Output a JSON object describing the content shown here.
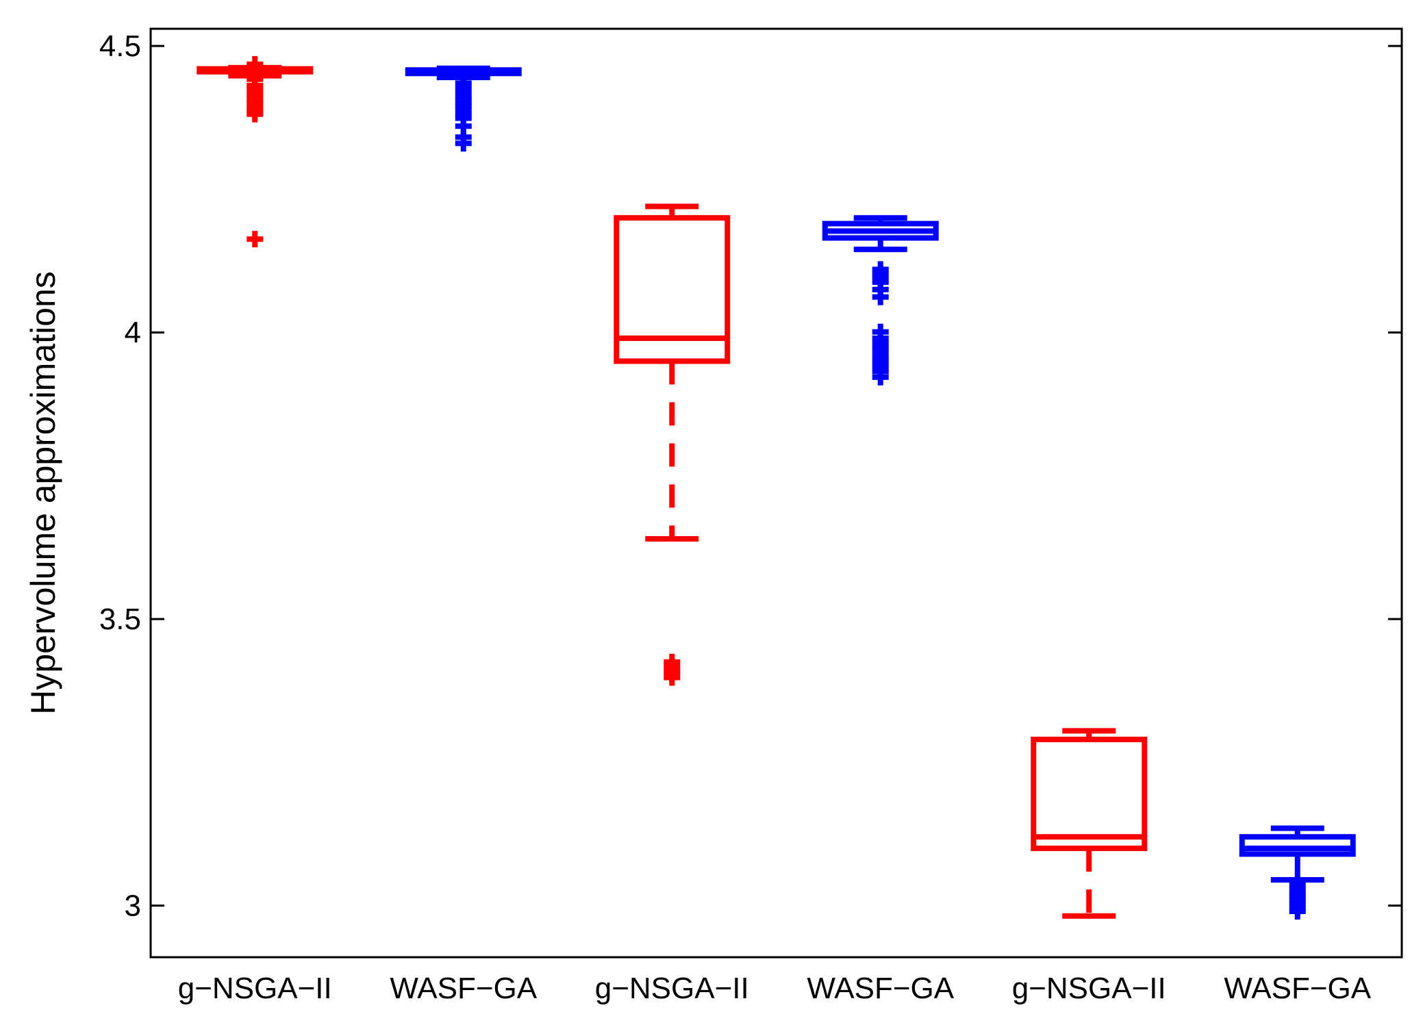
{
  "chart_data": {
    "type": "box",
    "title": "",
    "xlabel": "",
    "ylabel": "Hypervolume approximations",
    "ylim": [
      2.91,
      4.53
    ],
    "yticks": [
      3,
      3.5,
      4,
      4.5
    ],
    "ytick_labels": [
      "3",
      "3.5",
      "4",
      "4.5"
    ],
    "grid": false,
    "colors": {
      "g-NSGA-II": "#ff0000",
      "WASF-GA": "#0000ff",
      "axis": "#000000"
    },
    "categories": [
      "g−NSGA−II",
      "WASF−GA",
      "g−NSGA−II",
      "WASF−GA",
      "g−NSGA−II",
      "WASF−GA"
    ],
    "boxes": [
      {
        "label": "g−NSGA−II",
        "algorithm": "g-NSGA-II",
        "whisker_low": 4.448,
        "q1": 4.455,
        "median": 4.458,
        "q3": 4.46,
        "whisker_high": 4.462,
        "outliers": [
          4.468,
          4.449,
          4.442,
          4.431,
          4.424,
          4.415,
          4.407,
          4.401,
          4.392,
          4.386,
          4.381,
          4.163
        ]
      },
      {
        "label": "WASF−GA",
        "algorithm": "WASF-GA",
        "whisker_low": 4.445,
        "q1": 4.452,
        "median": 4.455,
        "q3": 4.458,
        "whisker_high": 4.461,
        "outliers": [
          4.435,
          4.427,
          4.418,
          4.41,
          4.402,
          4.396,
          4.389,
          4.381,
          4.374,
          4.36,
          4.341,
          4.33
        ]
      },
      {
        "label": "g−NSGA−II",
        "algorithm": "g-NSGA-II",
        "whisker_low": 3.64,
        "q1": 3.95,
        "median": 3.99,
        "q3": 4.2,
        "whisker_high": 4.22,
        "outliers": [
          3.425,
          3.417,
          3.41,
          3.405,
          3.398
        ]
      },
      {
        "label": "WASF−GA",
        "algorithm": "WASF-GA",
        "whisker_low": 4.145,
        "q1": 4.165,
        "median": 4.177,
        "q3": 4.19,
        "whisker_high": 4.2,
        "outliers": [
          4.11,
          4.103,
          4.096,
          4.088,
          4.075,
          4.062,
          4.001,
          3.99,
          3.982,
          3.973,
          3.965,
          3.956,
          3.948,
          3.94,
          3.932,
          3.922
        ]
      },
      {
        "label": "g−NSGA−II",
        "algorithm": "g-NSGA-II",
        "whisker_low": 2.982,
        "q1": 3.1,
        "median": 3.12,
        "q3": 3.29,
        "whisker_high": 3.305,
        "outliers": []
      },
      {
        "label": "WASF−GA",
        "algorithm": "WASF-GA",
        "whisker_low": 3.045,
        "q1": 3.09,
        "median": 3.1,
        "q3": 3.12,
        "whisker_high": 3.135,
        "outliers": [
          3.037,
          3.029,
          3.022,
          3.015,
          3.009,
          3.002,
          2.995,
          2.99
        ]
      }
    ]
  }
}
